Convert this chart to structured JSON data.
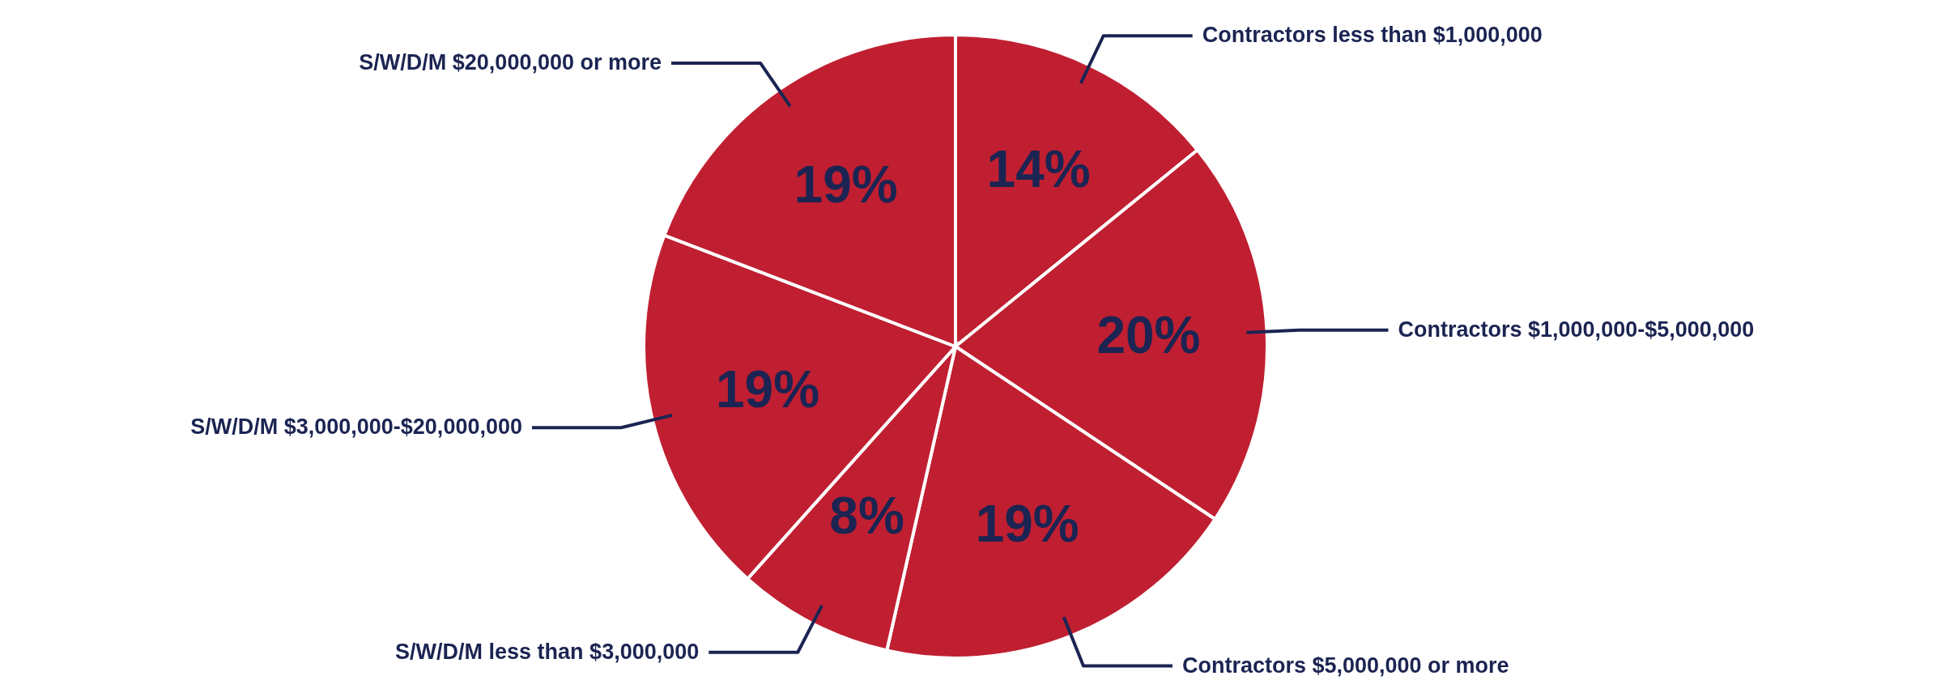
{
  "chart_data": {
    "type": "pie",
    "categories": [
      "Contractors less than $1,000,000",
      "Contractors $1,000,000-$5,000,000",
      "Contractors $5,000,000 or more",
      "S/W/D/M less than $3,000,000",
      "S/W/D/M $3,000,000-$20,000,000",
      "S/W/D/M $20,000,000 or more"
    ],
    "values": [
      14,
      20,
      19,
      8,
      19,
      19
    ],
    "value_labels": [
      "14%",
      "20%",
      "19%",
      "8%",
      "19%",
      "19%"
    ],
    "colors": [
      "#c01f31",
      "#c01f31",
      "#c01f31",
      "#c01f31",
      "#c01f31",
      "#c01f31"
    ]
  }
}
